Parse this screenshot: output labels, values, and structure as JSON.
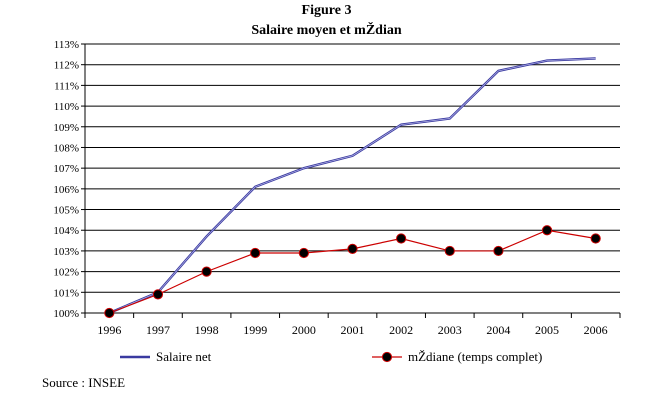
{
  "figure_label": "Figure 3",
  "source": "Source : INSEE",
  "chart_data": {
    "type": "line",
    "title": "Salaire moyen et mŽdian",
    "xlabel": "",
    "ylabel": "",
    "x": [
      "1996",
      "1997",
      "1998",
      "1999",
      "2000",
      "2001",
      "2002",
      "2003",
      "2004",
      "2005",
      "2006"
    ],
    "ylim": [
      100,
      113
    ],
    "yticks": [
      100,
      101,
      102,
      103,
      104,
      105,
      106,
      107,
      108,
      109,
      110,
      111,
      112,
      113
    ],
    "ytick_labels": [
      "100%",
      "101%",
      "102%",
      "103%",
      "104%",
      "105%",
      "106%",
      "107%",
      "108%",
      "109%",
      "110%",
      "111%",
      "112%",
      "113%"
    ],
    "grid": true,
    "legend_position": "bottom",
    "series": [
      {
        "name": "Salaire net",
        "color": "#3a3aa0",
        "marker": "none",
        "values": [
          100.0,
          101.0,
          103.7,
          106.1,
          107.0,
          107.6,
          109.1,
          109.4,
          111.7,
          112.2,
          112.3
        ]
      },
      {
        "name": "mŽdiane (temps complet)",
        "color": "#cc0000",
        "marker": "circle",
        "values": [
          100.0,
          100.9,
          102.0,
          102.9,
          102.9,
          103.1,
          103.6,
          103.0,
          103.0,
          104.0,
          103.6
        ]
      }
    ]
  }
}
